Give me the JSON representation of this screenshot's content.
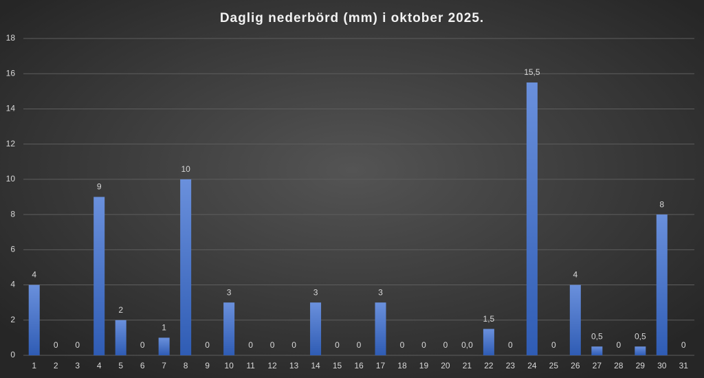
{
  "chart_data": {
    "type": "bar",
    "title": "Daglig nederbörd (mm) i oktober 2025.",
    "categories": [
      "1",
      "2",
      "3",
      "4",
      "5",
      "6",
      "7",
      "8",
      "9",
      "10",
      "11",
      "12",
      "13",
      "14",
      "15",
      "16",
      "17",
      "18",
      "19",
      "20",
      "21",
      "22",
      "23",
      "24",
      "25",
      "26",
      "27",
      "28",
      "29",
      "30",
      "31"
    ],
    "values": [
      4,
      0,
      0,
      9,
      2,
      0,
      1,
      10,
      0,
      3,
      0,
      0,
      0,
      3,
      0,
      0,
      3,
      0,
      0,
      0,
      0,
      1.5,
      0,
      15.5,
      0,
      4,
      0.5,
      0,
      0.5,
      8,
      0
    ],
    "value_labels": [
      "4",
      "0",
      "0",
      "9",
      "2",
      "0",
      "1",
      "10",
      "0",
      "3",
      "0",
      "0",
      "0",
      "3",
      "0",
      "0",
      "3",
      "0",
      "0",
      "0",
      "0,0",
      "1,5",
      "0",
      "15,5",
      "0",
      "4",
      "0,5",
      "0",
      "0,5",
      "8",
      "0"
    ],
    "color": "#4472c4",
    "ylim": [
      0,
      18
    ],
    "yticks": [
      0,
      2,
      4,
      6,
      8,
      10,
      12,
      14,
      16,
      18
    ],
    "grid": true
  }
}
